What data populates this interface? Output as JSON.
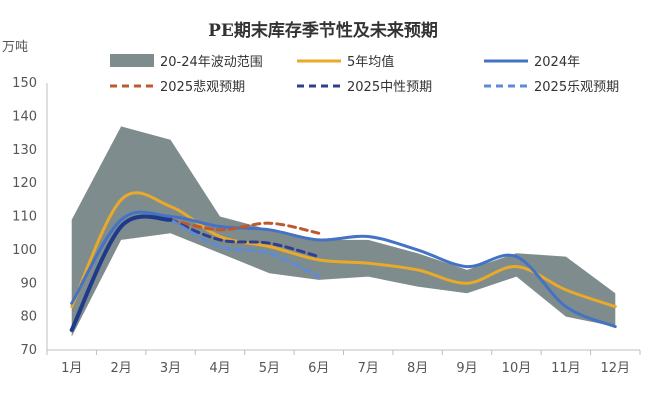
{
  "chart_data": {
    "type": "line",
    "title": "PE期末库存季节性及未来预期",
    "ylabel": "万吨",
    "xlabel": "",
    "ylim": [
      70,
      150
    ],
    "yticks": [
      70,
      80,
      90,
      100,
      110,
      120,
      130,
      140,
      150
    ],
    "categories": [
      "1月",
      "2月",
      "3月",
      "4月",
      "5月",
      "6月",
      "7月",
      "8月",
      "9月",
      "10月",
      "11月",
      "12月"
    ],
    "grid": false,
    "legend_position": "top",
    "band": {
      "name": "20-24年波动范围",
      "color": "#7f8c8d",
      "upper": [
        109,
        137,
        133,
        110,
        106,
        103,
        103,
        99,
        94,
        99,
        98,
        87
      ],
      "lower": [
        74,
        103,
        105,
        99,
        93,
        91,
        92,
        89,
        87,
        92,
        80,
        77
      ]
    },
    "series": [
      {
        "name": "5年均值",
        "color": "#e9a92a",
        "dash": false,
        "values": [
          83,
          115,
          113,
          104,
          101,
          97,
          96,
          94,
          90,
          95,
          88,
          83
        ]
      },
      {
        "name": "2024年",
        "color": "#4472c4",
        "dash": false,
        "values": [
          84,
          109,
          110,
          107,
          106,
          103,
          104,
          100,
          95,
          98,
          83,
          77
        ]
      },
      {
        "name": "2025悲观预期",
        "color": "#c0582d",
        "dash": true,
        "values": [
          null,
          null,
          109,
          106,
          108,
          105,
          null,
          null,
          null,
          null,
          null,
          null
        ]
      },
      {
        "name": "2025中性预期",
        "color": "#2f3f8f",
        "dash": true,
        "values": [
          null,
          null,
          109,
          103,
          102,
          98,
          null,
          null,
          null,
          null,
          null,
          null
        ]
      },
      {
        "name": "2025乐观预期",
        "color": "#5b8bd9",
        "dash": true,
        "values": [
          null,
          null,
          109,
          101,
          99,
          92,
          null,
          null,
          null,
          null,
          null,
          null
        ]
      },
      {
        "name": "",
        "color": "#1f3a8a",
        "dash": false,
        "width": 4,
        "values": [
          76,
          107,
          109,
          null,
          null,
          null,
          null,
          null,
          null,
          null,
          null,
          null
        ]
      }
    ]
  }
}
